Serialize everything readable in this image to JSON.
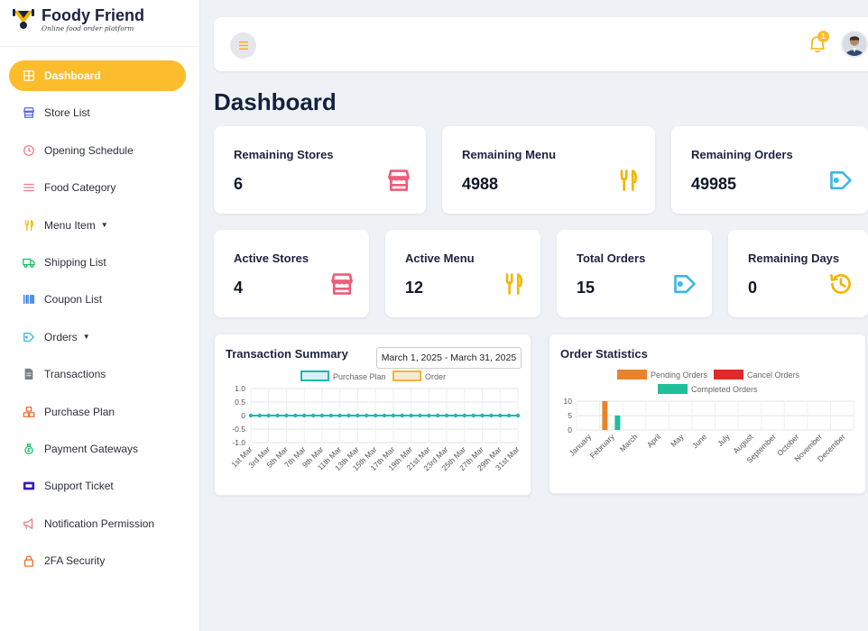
{
  "brand": {
    "title": "Foody Friend",
    "subtitle": "Online food order platform"
  },
  "sidebar": {
    "items": [
      {
        "label": "Dashboard",
        "icon": "grid-icon",
        "active": true
      },
      {
        "label": "Store List",
        "icon": "store-icon"
      },
      {
        "label": "Opening Schedule",
        "icon": "clock-icon"
      },
      {
        "label": "Food Category",
        "icon": "list-icon"
      },
      {
        "label": "Menu Item",
        "icon": "fork-knife-icon",
        "dropdown": true
      },
      {
        "label": "Shipping List",
        "icon": "truck-icon"
      },
      {
        "label": "Coupon List",
        "icon": "barcode-icon"
      },
      {
        "label": "Orders",
        "icon": "tag-icon",
        "dropdown": true
      },
      {
        "label": "Transactions",
        "icon": "document-icon"
      },
      {
        "label": "Purchase Plan",
        "icon": "boxes-icon"
      },
      {
        "label": "Payment Gateways",
        "icon": "money-bag-icon"
      },
      {
        "label": "Support Ticket",
        "icon": "ticket-icon"
      },
      {
        "label": "Notification Permission",
        "icon": "megaphone-icon"
      },
      {
        "label": "2FA Security",
        "icon": "lock-icon"
      }
    ]
  },
  "header": {
    "notification_count": "1"
  },
  "page": {
    "title": "Dashboard"
  },
  "stats_row1": [
    {
      "label": "Remaining Stores",
      "value": "6",
      "icon": "store-icon",
      "color": "#f05a78"
    },
    {
      "label": "Remaining Menu",
      "value": "4988",
      "icon": "fork-knife-icon",
      "color": "#f5b400"
    },
    {
      "label": "Remaining Orders",
      "value": "49985",
      "icon": "tag-icon",
      "color": "#3bb6e8"
    }
  ],
  "stats_row2": [
    {
      "label": "Active Stores",
      "value": "4",
      "icon": "store-icon",
      "color": "#f05a78"
    },
    {
      "label": "Active Menu",
      "value": "12",
      "icon": "fork-knife-icon",
      "color": "#f5b400"
    },
    {
      "label": "Total Orders",
      "value": "15",
      "icon": "tag-icon",
      "color": "#3bb6e8"
    },
    {
      "label": "Remaining Days",
      "value": "0",
      "icon": "history-icon",
      "color": "#f5b400"
    }
  ],
  "transaction_summary": {
    "title": "Transaction Summary",
    "date_range": "March 1, 2025 - March 31, 2025"
  },
  "order_statistics": {
    "title": "Order Statistics"
  },
  "chart_data": [
    {
      "type": "line",
      "title": "Transaction Summary",
      "legend": "top",
      "x": [
        "1st Mar",
        "2nd Mar",
        "3rd Mar",
        "4th Mar",
        "5th Mar",
        "6th Mar",
        "7th Mar",
        "8th Mar",
        "9th Mar",
        "10th Mar",
        "11th Mar",
        "12th Mar",
        "13th Mar",
        "14th Mar",
        "15th Mar",
        "16th Mar",
        "17th Mar",
        "18th Mar",
        "19th Mar",
        "20th Mar",
        "21st Mar",
        "22nd Mar",
        "23rd Mar",
        "24th Mar",
        "25th Mar",
        "26th Mar",
        "27th Mar",
        "28th Mar",
        "29th Mar",
        "30th Mar",
        "31st Mar"
      ],
      "tick_labels": [
        "1st Mar",
        "3rd Mar",
        "5th Mar",
        "7th Mar",
        "9th Mar",
        "11th Mar",
        "13th Mar",
        "15th Mar",
        "17th Mar",
        "19th Mar",
        "21st Mar",
        "23rd Mar",
        "25th Mar",
        "27th Mar",
        "29th Mar",
        "31st Mar"
      ],
      "ylim": [
        -1.0,
        1.0
      ],
      "yticks": [
        "1.0",
        "0.5",
        "0",
        "-0.5",
        "-1.0"
      ],
      "grid": true,
      "series": [
        {
          "name": "Purchase Plan",
          "color": "#20b8b0",
          "values": [
            0,
            0,
            0,
            0,
            0,
            0,
            0,
            0,
            0,
            0,
            0,
            0,
            0,
            0,
            0,
            0,
            0,
            0,
            0,
            0,
            0,
            0,
            0,
            0,
            0,
            0,
            0,
            0,
            0,
            0,
            0
          ]
        },
        {
          "name": "Order",
          "color": "#f2b33d",
          "values": [
            0,
            0,
            0,
            0,
            0,
            0,
            0,
            0,
            0,
            0,
            0,
            0,
            0,
            0,
            0,
            0,
            0,
            0,
            0,
            0,
            0,
            0,
            0,
            0,
            0,
            0,
            0,
            0,
            0,
            0,
            0
          ]
        }
      ]
    },
    {
      "type": "bar",
      "title": "Order Statistics",
      "legend": "top",
      "categories": [
        "January",
        "February",
        "March",
        "April",
        "May",
        "June",
        "July",
        "August",
        "September",
        "October",
        "November",
        "December"
      ],
      "ylim": [
        0,
        10
      ],
      "yticks": [
        "10",
        "5",
        "0"
      ],
      "grid": true,
      "series": [
        {
          "name": "Pending Orders",
          "color": "#e8832a",
          "values": [
            0,
            10,
            0,
            0,
            0,
            0,
            0,
            0,
            0,
            0,
            0,
            0
          ]
        },
        {
          "name": "Cancel Orders",
          "color": "#e02a2a",
          "values": [
            0,
            0,
            0,
            0,
            0,
            0,
            0,
            0,
            0,
            0,
            0,
            0
          ]
        },
        {
          "name": "Completed Orders",
          "color": "#1fbf9a",
          "values": [
            0,
            5,
            0,
            0,
            0,
            0,
            0,
            0,
            0,
            0,
            0,
            0
          ]
        }
      ]
    }
  ]
}
